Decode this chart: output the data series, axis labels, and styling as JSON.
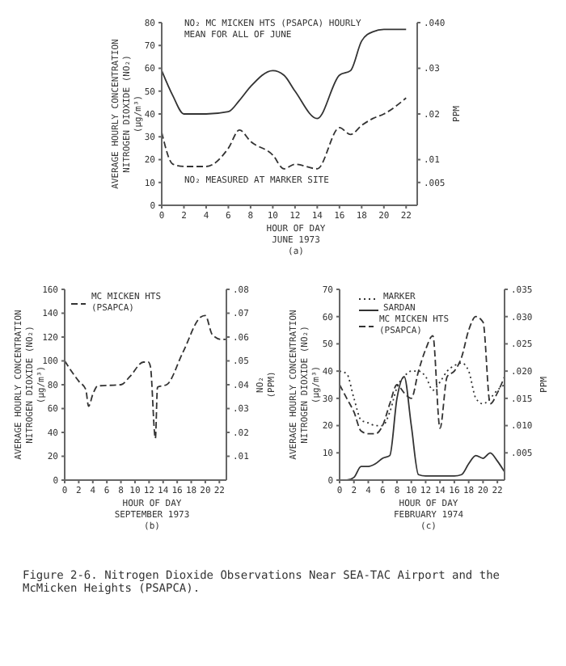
{
  "chart_data": [
    {
      "type": "line",
      "xlabel": "HOUR OF DAY",
      "subtitle": "JUNE 1973",
      "ylabel": "AVERAGE HOURLY CONCENTRATION NITROGEN DIOXIDE (NO₂) (µg/m³)",
      "y2label": "PPM",
      "annotations": [
        "(a)"
      ],
      "x": [
        0,
        1,
        2,
        4,
        6,
        7,
        8,
        10,
        11,
        12,
        14,
        16,
        17,
        18,
        19,
        20,
        22
      ],
      "series": [
        {
          "name": "NO₂ MC MICKEN HTS (PSAPCA) HOURLY MEAN FOR ALL OF JUNE",
          "color": "#333333",
          "line_style": "solid",
          "values": [
            59,
            48,
            40,
            40,
            41,
            46,
            52,
            59,
            57,
            50,
            38,
            57,
            59,
            72,
            76,
            77,
            77
          ]
        },
        {
          "name": "NO₂ MEASURED AT MARKER SITE",
          "color": "#333333",
          "line_style": "dashed",
          "values": [
            32,
            18,
            17,
            17,
            25,
            33,
            28,
            22,
            16,
            18,
            16,
            34,
            31,
            35,
            38,
            40,
            47
          ]
        }
      ],
      "xlim": [
        0,
        23
      ],
      "xticks": [
        0,
        2,
        4,
        6,
        8,
        10,
        12,
        14,
        16,
        18,
        20,
        22
      ],
      "ylim": [
        0,
        80
      ],
      "yticks": [
        0,
        10,
        20,
        30,
        40,
        50,
        60,
        70,
        80
      ],
      "y2lim": [
        0,
        0.04
      ],
      "y2ticks": [
        {
          "value": 0.005,
          "label": ".005"
        },
        {
          "value": 0.01,
          "label": ".01"
        },
        {
          "value": 0.02,
          "label": ".02"
        },
        {
          "value": 0.03,
          "label": ".03"
        },
        {
          "value": 0.04,
          "label": ".040"
        }
      ],
      "grid": false,
      "legend": false,
      "marker": "none"
    },
    {
      "type": "line",
      "xlabel": "HOUR OF DAY",
      "subtitle": "SEPTEMBER 1973",
      "ylabel": "AVERAGE HOURLY CONCENTRATION NITROGEN DIOXIDE (NO₂) (µg/m³)",
      "y2label": "NO₂ (PPM)",
      "annotations": [
        "(b)"
      ],
      "x": [
        0,
        1,
        2,
        3,
        3.4,
        4,
        4.7,
        8,
        9.3,
        11.2,
        11.9,
        12.2,
        12.9,
        13.2,
        14.5,
        16.8,
        19.4,
        20,
        21,
        22.3,
        23
      ],
      "series": [
        {
          "name": "MC MICKEN HTS (PSAPCA)",
          "color": "#333333",
          "line_style": "dashed",
          "values": [
            100,
            91,
            83,
            76,
            62,
            72,
            79,
            80,
            87,
            99,
            99,
            95,
            35,
            78,
            80,
            107,
            137,
            138,
            122,
            118,
            118
          ]
        }
      ],
      "xlim": [
        0,
        23
      ],
      "xticks": [
        0,
        2,
        4,
        6,
        8,
        10,
        12,
        14,
        16,
        18,
        20,
        22
      ],
      "ylim": [
        0,
        160
      ],
      "yticks": [
        0,
        20,
        40,
        60,
        80,
        100,
        120,
        140,
        160
      ],
      "y2lim": [
        0,
        0.08
      ],
      "y2ticks": [
        {
          "value": 0.01,
          "label": ".01"
        },
        {
          "value": 0.02,
          "label": ".02"
        },
        {
          "value": 0.03,
          "label": ".03"
        },
        {
          "value": 0.04,
          "label": ".04"
        },
        {
          "value": 0.05,
          "label": ".05"
        },
        {
          "value": 0.06,
          "label": ".06"
        },
        {
          "value": 0.07,
          "label": ".07"
        },
        {
          "value": 0.08,
          "label": ".08"
        }
      ],
      "grid": false,
      "legend": "top",
      "marker": "none"
    },
    {
      "type": "line",
      "xlabel": "HOUR OF DAY",
      "subtitle": "FEBRUARY 1974",
      "ylabel": "AVERAGE HOURLY CONCENTRATION NITROGEN DIOXIDE (NO₂) (µg/m³)",
      "y2label": "PPM",
      "annotations": [
        "(c)",
        "Figure 2-6.  Nitrogen Dioxide Observations Near SEA-TAC Airport and the McMicken Heights (PSAPCA)."
      ],
      "x": [
        0,
        1,
        2,
        3,
        4,
        5,
        6,
        7,
        8,
        9,
        10,
        11,
        12,
        13,
        14,
        15,
        16,
        17,
        18,
        19,
        20,
        21,
        22,
        23
      ],
      "series": [
        {
          "name": "MARKER",
          "color": "#333333",
          "line_style": "dotted",
          "values": [
            40,
            39,
            30,
            22,
            21,
            20,
            20,
            25,
            34,
            38,
            40,
            40,
            38,
            33,
            36,
            40,
            42,
            43,
            40,
            30,
            28,
            30,
            33,
            35
          ]
        },
        {
          "name": "SARDAN",
          "color": "#333333",
          "line_style": "solid",
          "values": [
            0,
            0,
            1,
            5,
            5,
            6,
            8,
            9,
            30,
            38,
            20,
            2,
            1.5,
            1.5,
            1.5,
            1.5,
            1.5,
            2,
            6,
            9,
            8,
            10,
            7,
            3
          ]
        },
        {
          "name": "MC MICKEN HTS (PSAPCA)",
          "color": "#333333",
          "line_style": "dashed",
          "values": [
            35,
            30,
            25,
            18,
            17,
            17,
            20,
            28,
            35,
            32,
            30,
            40,
            48,
            53,
            19,
            38,
            40,
            45,
            55,
            60,
            58,
            28,
            32,
            38
          ]
        }
      ],
      "xlim": [
        0,
        23
      ],
      "xticks": [
        0,
        2,
        4,
        6,
        8,
        10,
        12,
        14,
        16,
        18,
        20,
        22
      ],
      "ylim": [
        0,
        70
      ],
      "yticks": [
        0,
        10,
        20,
        30,
        40,
        50,
        60,
        70
      ],
      "y2lim": [
        0,
        0.035
      ],
      "y2ticks": [
        {
          "value": 0.005,
          "label": ".005"
        },
        {
          "value": 0.01,
          "label": ".010"
        },
        {
          "value": 0.015,
          "label": ".015"
        },
        {
          "value": 0.02,
          "label": ".020"
        },
        {
          "value": 0.025,
          "label": ".025"
        },
        {
          "value": 0.03,
          "label": ".030"
        },
        {
          "value": 0.035,
          "label": ".035"
        }
      ],
      "grid": false,
      "legend": "top left",
      "marker": "none"
    }
  ]
}
